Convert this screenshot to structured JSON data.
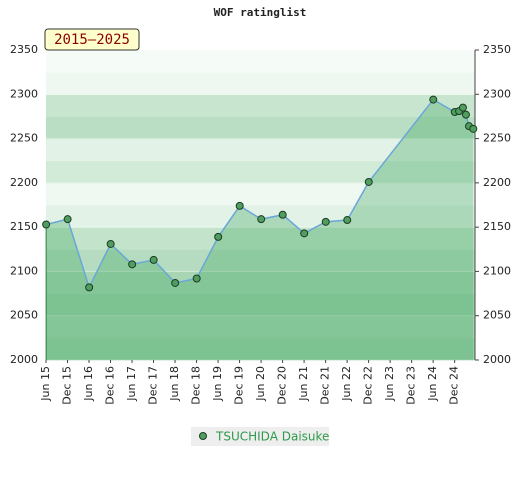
{
  "chart_data": {
    "type": "line",
    "title": "WOF ratinglist",
    "badge": "2015–2025",
    "x": [
      2015.42,
      2015.92,
      2016.42,
      2016.92,
      2017.42,
      2017.92,
      2018.42,
      2018.92,
      2019.42,
      2019.92,
      2020.42,
      2020.92,
      2021.42,
      2021.92,
      2022.42,
      2022.92,
      2024.42,
      2024.92,
      2025.02,
      2025.11,
      2025.18,
      2025.25,
      2025.35
    ],
    "series": [
      {
        "name": "TSUCHIDA Daisuke",
        "color": "#4f9e5f",
        "line_color": "#6aa6d8",
        "values": [
          2153,
          2159,
          2082,
          2131,
          2108,
          2113,
          2087,
          2092,
          2139,
          2174,
          2159,
          2164,
          2143,
          2156,
          2158,
          2201,
          2294,
          2280,
          2281,
          2285,
          2277,
          2264,
          2261
        ]
      }
    ],
    "xlim": [
      2015.417,
      2025.39
    ],
    "ylim": [
      2000,
      2350
    ],
    "xticks": [
      {
        "value": 2015.417,
        "label": "Jun 15"
      },
      {
        "value": 2015.917,
        "label": "Dec 15"
      },
      {
        "value": 2016.417,
        "label": "Jun 16"
      },
      {
        "value": 2016.917,
        "label": "Dec 16"
      },
      {
        "value": 2017.417,
        "label": "Jun 17"
      },
      {
        "value": 2017.917,
        "label": "Dec 17"
      },
      {
        "value": 2018.417,
        "label": "Jun 18"
      },
      {
        "value": 2018.917,
        "label": "Dec 18"
      },
      {
        "value": 2019.417,
        "label": "Jun 19"
      },
      {
        "value": 2019.917,
        "label": "Dec 19"
      },
      {
        "value": 2020.417,
        "label": "Jun 20"
      },
      {
        "value": 2020.917,
        "label": "Dec 20"
      },
      {
        "value": 2021.417,
        "label": "Jun 21"
      },
      {
        "value": 2021.917,
        "label": "Dec 21"
      },
      {
        "value": 2022.417,
        "label": "Jun 22"
      },
      {
        "value": 2022.917,
        "label": "Dec 22"
      },
      {
        "value": 2023.417,
        "label": "Jun 23"
      },
      {
        "value": 2023.917,
        "label": "Dec 23"
      },
      {
        "value": 2024.417,
        "label": "Jun 24"
      },
      {
        "value": 2024.917,
        "label": "Dec 24"
      }
    ],
    "yticks": [
      2000,
      2050,
      2100,
      2150,
      2200,
      2250,
      2300,
      2350
    ]
  }
}
